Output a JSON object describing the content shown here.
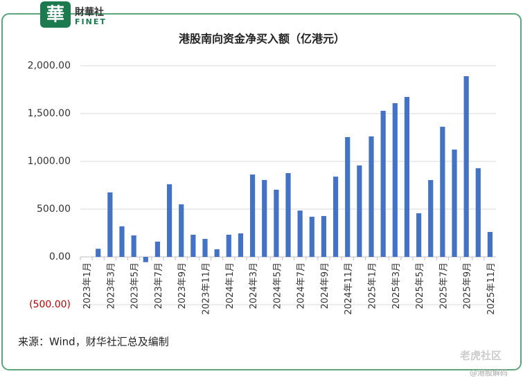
{
  "chart_data": {
    "type": "bar",
    "title": "港股南向资金净买入额（亿港元）",
    "categories": [
      "2023年1月",
      null,
      "2023年3月",
      null,
      "2023年5月",
      null,
      "2023年7月",
      null,
      "2023年9月",
      null,
      "2023年11月",
      null,
      "2024年1月",
      null,
      "2024年3月",
      null,
      "2024年5月",
      null,
      "2024年7月",
      null,
      "2024年9月",
      null,
      "2024年11月",
      null,
      "2025年1月",
      null,
      "2025年3月",
      null,
      "2025年5月",
      null,
      "2025年7月",
      null,
      "2025年9月",
      null,
      "2025年11月"
    ],
    "values": [
      null,
      85,
      675,
      320,
      225,
      -55,
      160,
      760,
      550,
      232,
      188,
      80,
      232,
      246,
      862,
      805,
      703,
      877,
      485,
      420,
      428,
      840,
      1254,
      957,
      1261,
      1529,
      1609,
      1674,
      457,
      804,
      1362,
      1123,
      1891,
      928,
      261
    ],
    "color": "#4472c4",
    "ylim": [
      -500,
      2000
    ],
    "yticks": [
      {
        "value": -500,
        "label": "(500.00)"
      },
      {
        "value": 0,
        "label": "0.00"
      },
      {
        "value": 500,
        "label": "500.00"
      },
      {
        "value": 1000,
        "label": "1,000.00"
      },
      {
        "value": 1500,
        "label": "1,500.00"
      },
      {
        "value": 2000,
        "label": "2,000.00"
      }
    ],
    "negative_tick_color": "#c00000",
    "grid": true,
    "source": "来源：Wind，财华社汇总及编制"
  },
  "logo": {
    "mark": "華",
    "name": "財華社",
    "sub": "FINET"
  },
  "footer": {
    "brand": "老虎社区",
    "handle": "@港股解码"
  }
}
